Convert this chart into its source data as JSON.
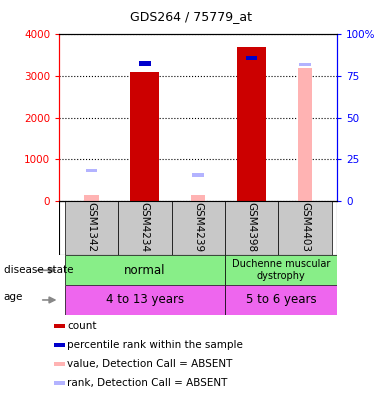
{
  "title": "GDS264 / 75779_at",
  "samples": [
    "GSM1342",
    "GSM4234",
    "GSM4239",
    "GSM4398",
    "GSM4403"
  ],
  "count_values": [
    null,
    3100,
    null,
    3700,
    null
  ],
  "rank_values_left_scale": [
    null,
    3250,
    null,
    3380,
    null
  ],
  "absent_value": [
    130,
    null,
    130,
    null,
    3200
  ],
  "absent_rank_left_scale": [
    680,
    null,
    580,
    null,
    3230
  ],
  "ylim_left": [
    0,
    4000
  ],
  "ylim_right": [
    0,
    100
  ],
  "yticks_left": [
    0,
    1000,
    2000,
    3000,
    4000
  ],
  "yticks_right": [
    0,
    25,
    50,
    75,
    100
  ],
  "color_count": "#cc0000",
  "color_rank": "#0000cc",
  "color_absent_val": "#ffb3b3",
  "color_absent_rank": "#b3b3ff",
  "bar_width": 0.55,
  "small_bar_width": 0.18,
  "legend_items": [
    {
      "label": "count",
      "color": "#cc0000"
    },
    {
      "label": "percentile rank within the sample",
      "color": "#0000cc"
    },
    {
      "label": "value, Detection Call = ABSENT",
      "color": "#ffb3b3"
    },
    {
      "label": "rank, Detection Call = ABSENT",
      "color": "#b3b3ff"
    }
  ],
  "disease_normal_label": "normal",
  "disease_dmd_label": "Duchenne muscular\ndystrophy",
  "age_label1": "4 to 13 years",
  "age_label2": "5 to 6 years",
  "color_green": "#88ee88",
  "color_magenta": "#ee66ee",
  "color_gray": "#c8c8c8",
  "figsize": [
    3.83,
    3.96
  ],
  "dpi": 100
}
